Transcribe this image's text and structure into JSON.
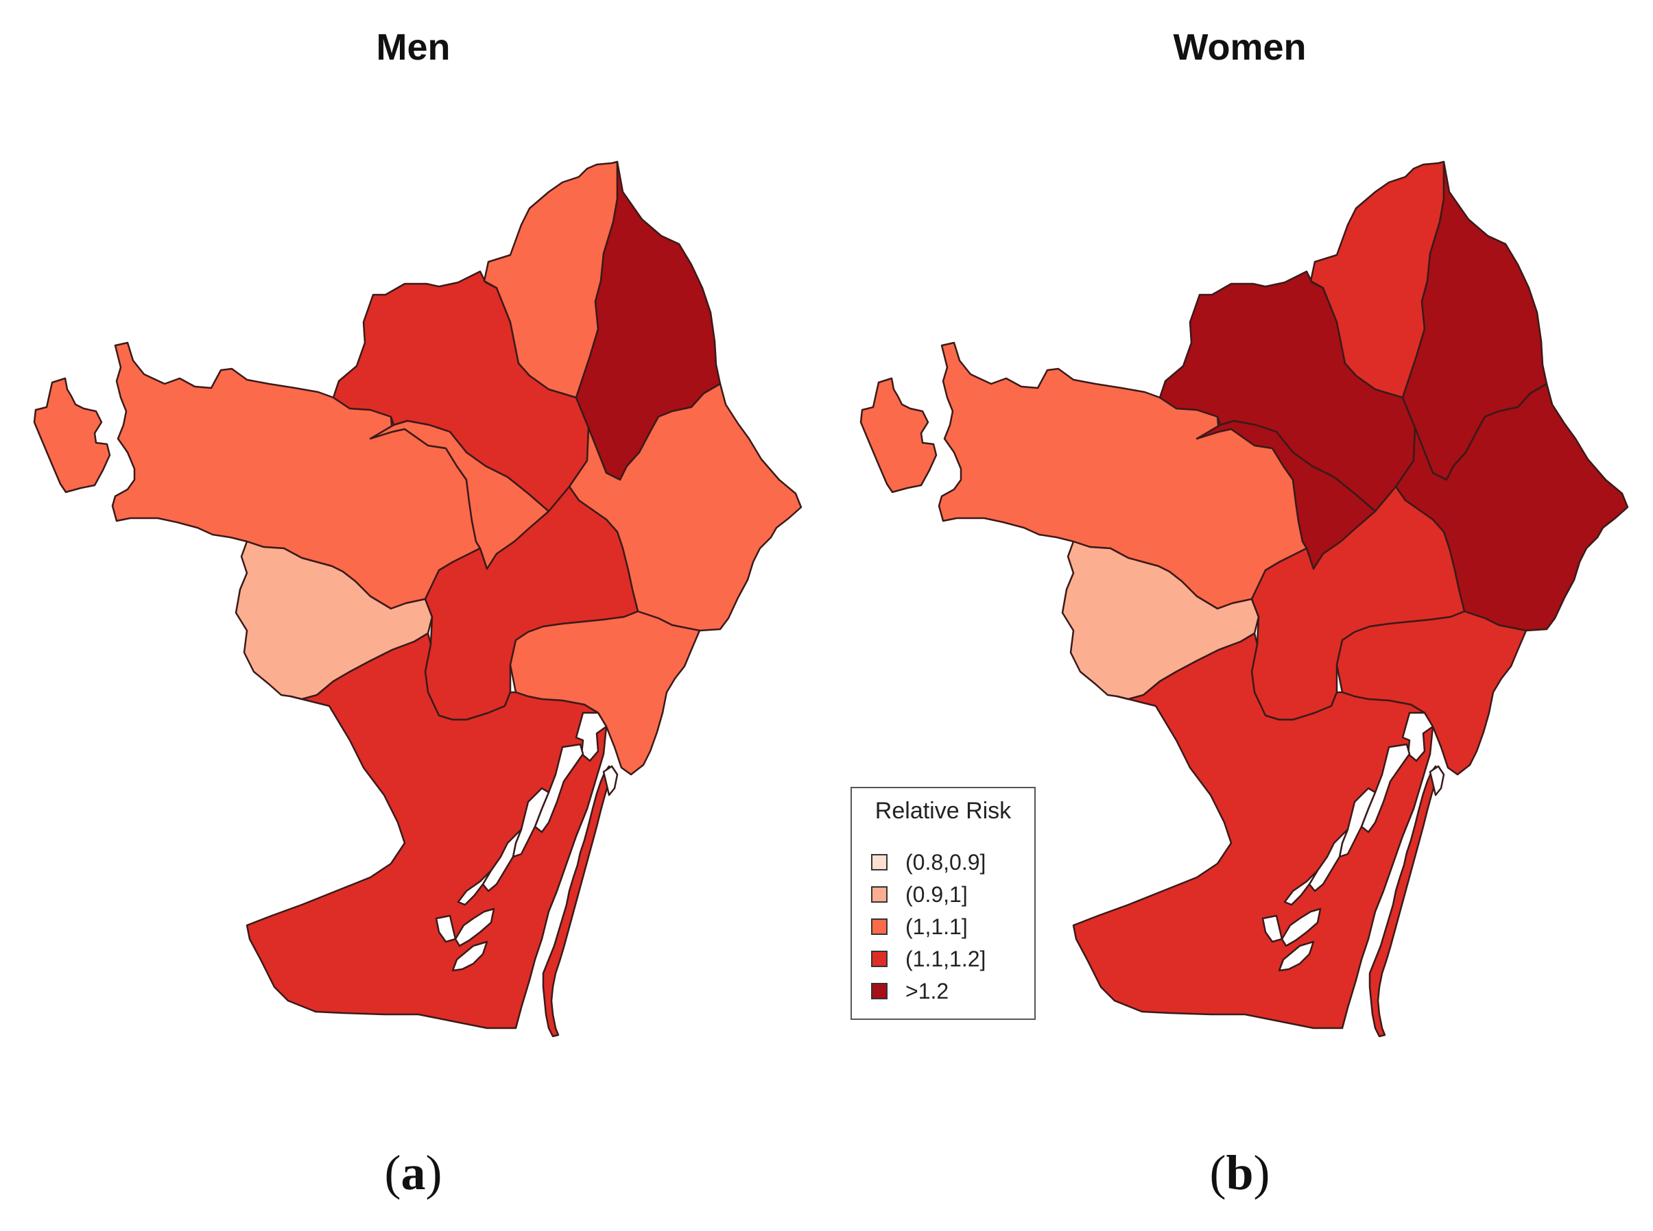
{
  "panels": [
    {
      "title": "Men",
      "caption": "(a)",
      "caption_letter": "a",
      "districts": {
        "nw-isle": "(1,1.1]",
        "west": "(1,1.1]",
        "south-west": "(0.9,1]",
        "north-mid": "(1.1,1.2]",
        "centre-strip": "(1,1.1]",
        "north": "(1,1.1]",
        "north-east": ">1.2",
        "east": "(1,1.1]",
        "centre": "(1.1,1.2]",
        "coast-centre": "(1,1.1]",
        "south": "(1.1,1.2]",
        "pier": "(1.1,1.2]"
      }
    },
    {
      "title": "Women",
      "caption": "(b)",
      "caption_letter": "b",
      "districts": {
        "nw-isle": "(1,1.1]",
        "west": "(1,1.1]",
        "south-west": "(0.9,1]",
        "north-mid": ">1.2",
        "centre-strip": ">1.2",
        "north": "(1.1,1.2]",
        "north-east": ">1.2",
        "east": ">1.2",
        "centre": "(1.1,1.2]",
        "coast-centre": "(1.1,1.2]",
        "south": "(1.1,1.2]",
        "pier": "(1.1,1.2]"
      }
    }
  ],
  "legend": {
    "title": "Relative Risk",
    "classes": [
      {
        "label": "(0.8,0.9]",
        "color": "#fde0d2"
      },
      {
        "label": "(0.9,1]",
        "color": "#fcae91"
      },
      {
        "label": "(1,1.1]",
        "color": "#fb6a4a"
      },
      {
        "label": "(1.1,1.2]",
        "color": "#de2d26"
      },
      {
        "label": ">1.2",
        "color": "#a50f15"
      }
    ]
  }
}
